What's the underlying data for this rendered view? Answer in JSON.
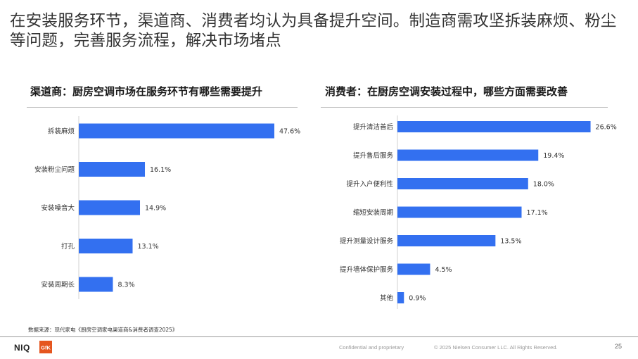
{
  "headline": "在安装服务环节，渠道商、消费者均认为具备提升空间。制造商需攻坚拆装麻烦、粉尘等问题，完善服务流程，解决市场堵点",
  "colors": {
    "bar": "#3370f0",
    "divider": "#bfbfbf",
    "footer_text": "#9a9a9a"
  },
  "chart_data": [
    {
      "type": "bar",
      "orientation": "horizontal",
      "title": "渠道商：厨房空调市场在服务环节有哪些需要提升",
      "categories": [
        "拆装麻烦",
        "安装粉尘问题",
        "安装噪音大",
        "打孔",
        "安装周期长"
      ],
      "values": [
        47.6,
        16.1,
        14.9,
        13.1,
        8.3
      ],
      "value_labels": [
        "47.6%",
        "16.1%",
        "14.9%",
        "13.1%",
        "8.3%"
      ],
      "xlim": [
        0,
        50
      ],
      "unit": "%"
    },
    {
      "type": "bar",
      "orientation": "horizontal",
      "title": "消费者：在厨房空调安装过程中，哪些方面需要改善",
      "categories": [
        "提升清洁善后",
        "提升售后服务",
        "提升入户便利性",
        "缩短安装周期",
        "提升测量设计服务",
        "提升墙体保护服务",
        "其他"
      ],
      "values": [
        26.6,
        19.4,
        18.0,
        17.1,
        13.5,
        4.5,
        0.9
      ],
      "value_labels": [
        "26.6%",
        "19.4%",
        "18.0%",
        "17.1%",
        "13.5%",
        "4.5%",
        "0.9%"
      ],
      "xlim": [
        0,
        28
      ],
      "unit": "%"
    }
  ],
  "source": "数据来源：现代家电《厨房空调家电渠道商&消费者调查2025》",
  "footer": {
    "logo_niq": "NIQ",
    "logo_gfk": "GfK",
    "confidential": "Confidential and proprietary",
    "copyright": "© 2025 Nielsen Consumer LLC. All Rights Reserved.",
    "page_number": "25"
  }
}
